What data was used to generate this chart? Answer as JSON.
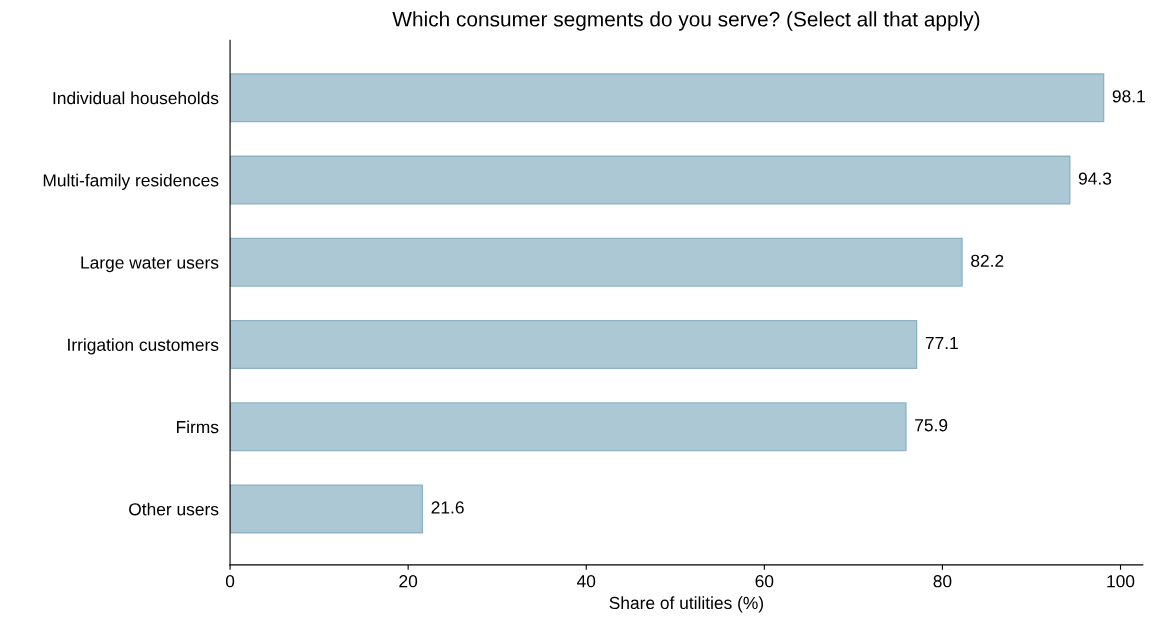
{
  "chart_data": {
    "type": "bar",
    "orientation": "horizontal",
    "title": "Which consumer segments do you serve? (Select all that apply)",
    "xlabel": "Share of utilities (%)",
    "categories": [
      "Individual households",
      "Multi-family residences",
      "Large water users",
      "Irrigation customers",
      "Firms",
      "Other users"
    ],
    "values": [
      98.1,
      94.3,
      82.2,
      77.1,
      75.9,
      21.6
    ],
    "color": "#abc8d4",
    "xlim": [
      0,
      102.5
    ],
    "xticks": [
      0,
      20,
      40,
      60,
      80,
      100
    ],
    "data_labels": true,
    "grid": false,
    "legend": false
  }
}
